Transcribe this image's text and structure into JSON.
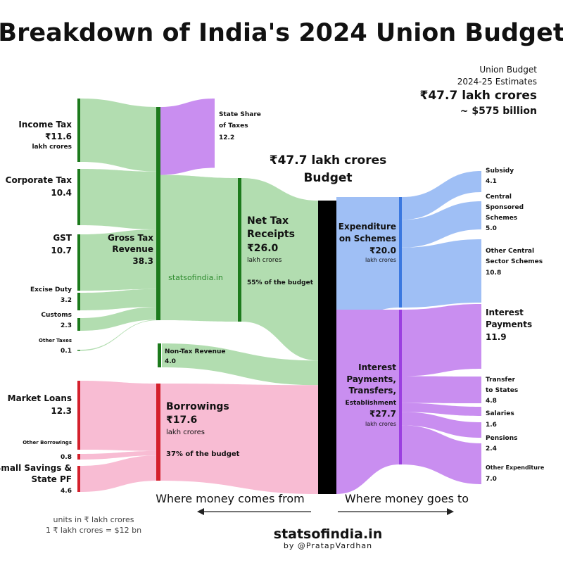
{
  "title": "Breakdown of India's 2024 Union Budget",
  "summary": {
    "line1": "Union Budget",
    "line2": "2024-25 Estimates",
    "total": "₹47.7 lakh crores",
    "usd": "~ $575 billion"
  },
  "center": {
    "line1": "₹47.7 lakh crores",
    "line2": "Budget"
  },
  "watermark": "statsofindia.in",
  "captions": {
    "left": "Where money comes from",
    "right": "Where money goes to"
  },
  "units": {
    "line1": "units in ₹ lakh crores",
    "line2": "1 ₹ lakh crores = $12 bn"
  },
  "brand": {
    "site": "statsofindia.in",
    "byline": "by @PratapVardhan"
  },
  "colors": {
    "tax": "#b2ddb0",
    "tax_bar": "#1c7a1c",
    "state": "#c98ef0",
    "borrow": "#f8bcd3",
    "borrow_bar": "#d4202c",
    "schemes": "#9fbff5",
    "schemes_bar": "#3a78e0",
    "other_exp": "#c98ef0",
    "other_exp_bar": "#9b3fe0",
    "budget_bar": "#000000"
  },
  "labels": {
    "income_tax": {
      "name": "Income Tax",
      "value": "₹11.6",
      "unit": "lakh crores"
    },
    "corporate_tax": {
      "name": "Corporate Tax",
      "value": "10.4"
    },
    "gst": {
      "name": "GST",
      "value": "10.7"
    },
    "excise": {
      "name": "Excise Duty",
      "value": "3.2"
    },
    "customs": {
      "name": "Customs",
      "value": "2.3"
    },
    "other_taxes": {
      "name": "Other Taxes",
      "value": "0.1"
    },
    "gross_tax": {
      "line1": "Gross Tax",
      "line2": "Revenue",
      "value": "38.3"
    },
    "state_share": {
      "line1": "State Share",
      "line2": "of Taxes",
      "value": "12.2"
    },
    "net_tax": {
      "line1": "Net Tax",
      "line2": "Receipts",
      "value": "₹26.0",
      "unit": "lakh crores",
      "share": "55% of the budget"
    },
    "non_tax": {
      "name": "Non-Tax Revenue",
      "value": "4.0"
    },
    "market_loans": {
      "name": "Market Loans",
      "value": "12.3"
    },
    "other_borrowings": {
      "name": "Other Borrowings",
      "value": "0.8"
    },
    "small_savings": {
      "line1": "Small Savings &",
      "line2": "State PF",
      "value": "4.6"
    },
    "borrowings": {
      "name": "Borrowings",
      "value": "₹17.6",
      "unit": "lakh crores",
      "share": "37% of the budget"
    },
    "schemes": {
      "line1": "Expenditure",
      "line2": "on Schemes",
      "value": "₹20.0",
      "unit": "lakh crores"
    },
    "other_exp": {
      "line1": "Interest",
      "line2": "Payments,",
      "line3": "Transfers,",
      "line4": "Establishment",
      "value": "₹27.7",
      "unit": "lakh crores"
    },
    "subsidy": {
      "name": "Subsidy",
      "value": "4.1"
    },
    "central_sponsored": {
      "line1": "Central",
      "line2": "Sponsored",
      "line3": "Schemes",
      "value": "5.0"
    },
    "other_central": {
      "line1": "Other Central",
      "line2": "Sector Schemes",
      "value": "10.8"
    },
    "interest": {
      "line1": "Interest",
      "line2": "Payments",
      "value": "11.9"
    },
    "transfer_states": {
      "line1": "Transfer",
      "line2": "to States",
      "value": "4.8"
    },
    "salaries": {
      "name": "Salaries",
      "value": "1.6"
    },
    "pensions": {
      "name": "Pensions",
      "value": "2.4"
    },
    "other_expenditure": {
      "name": "Other Expenditure",
      "value": "7.0"
    }
  },
  "chart_data": {
    "type": "sankey",
    "title": "Breakdown of India's 2024 Union Budget",
    "units": "₹ lakh crores",
    "nodes": [
      "Income Tax",
      "Corporate Tax",
      "GST",
      "Excise Duty",
      "Customs",
      "Other Taxes",
      "Gross Tax Revenue",
      "State Share of Taxes",
      "Net Tax Receipts",
      "Non-Tax Revenue",
      "Market Loans",
      "Other Borrowings",
      "Small Savings & State PF",
      "Borrowings",
      "Budget",
      "Expenditure on Schemes",
      "Interest Payments, Transfers, Establishment",
      "Subsidy",
      "Central Sponsored Schemes",
      "Other Central Sector Schemes",
      "Interest Payments",
      "Transfer to States",
      "Salaries",
      "Pensions",
      "Other Expenditure"
    ],
    "links": [
      {
        "source": "Income Tax",
        "target": "Gross Tax Revenue",
        "value": 11.6
      },
      {
        "source": "Corporate Tax",
        "target": "Gross Tax Revenue",
        "value": 10.4
      },
      {
        "source": "GST",
        "target": "Gross Tax Revenue",
        "value": 10.7
      },
      {
        "source": "Excise Duty",
        "target": "Gross Tax Revenue",
        "value": 3.2
      },
      {
        "source": "Customs",
        "target": "Gross Tax Revenue",
        "value": 2.3
      },
      {
        "source": "Other Taxes",
        "target": "Gross Tax Revenue",
        "value": 0.1
      },
      {
        "source": "Gross Tax Revenue",
        "target": "State Share of Taxes",
        "value": 12.2
      },
      {
        "source": "Gross Tax Revenue",
        "target": "Net Tax Receipts",
        "value": 26.0
      },
      {
        "source": "Net Tax Receipts",
        "target": "Budget",
        "value": 26.0
      },
      {
        "source": "Non-Tax Revenue",
        "target": "Budget",
        "value": 4.0
      },
      {
        "source": "Market Loans",
        "target": "Borrowings",
        "value": 12.3
      },
      {
        "source": "Other Borrowings",
        "target": "Borrowings",
        "value": 0.8
      },
      {
        "source": "Small Savings & State PF",
        "target": "Borrowings",
        "value": 4.6
      },
      {
        "source": "Borrowings",
        "target": "Budget",
        "value": 17.6
      },
      {
        "source": "Budget",
        "target": "Expenditure on Schemes",
        "value": 20.0
      },
      {
        "source": "Budget",
        "target": "Interest Payments, Transfers, Establishment",
        "value": 27.7
      },
      {
        "source": "Expenditure on Schemes",
        "target": "Subsidy",
        "value": 4.1
      },
      {
        "source": "Expenditure on Schemes",
        "target": "Central Sponsored Schemes",
        "value": 5.0
      },
      {
        "source": "Expenditure on Schemes",
        "target": "Other Central Sector Schemes",
        "value": 10.8
      },
      {
        "source": "Interest Payments, Transfers, Establishment",
        "target": "Interest Payments",
        "value": 11.9
      },
      {
        "source": "Interest Payments, Transfers, Establishment",
        "target": "Transfer to States",
        "value": 4.8
      },
      {
        "source": "Interest Payments, Transfers, Establishment",
        "target": "Salaries",
        "value": 1.6
      },
      {
        "source": "Interest Payments, Transfers, Establishment",
        "target": "Pensions",
        "value": 2.4
      },
      {
        "source": "Interest Payments, Transfers, Establishment",
        "target": "Other Expenditure",
        "value": 7.0
      }
    ],
    "shares": {
      "Net Tax Receipts": "55%",
      "Borrowings": "37%"
    },
    "total": 47.7
  }
}
